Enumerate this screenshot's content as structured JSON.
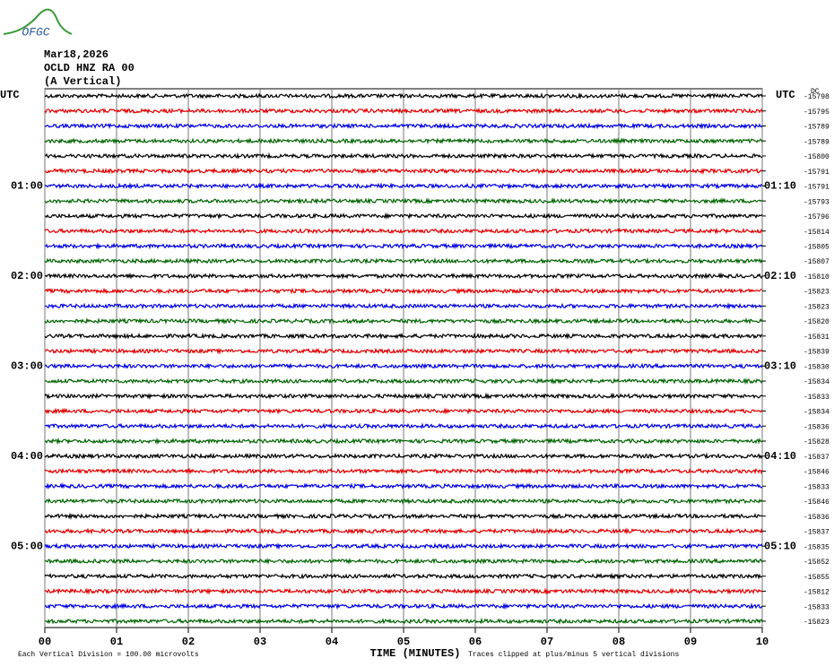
{
  "logo": "OFGC",
  "chart_data": {
    "type": "helicorder",
    "header": [
      "Mar18,2026",
      "OCLD HNZ RA 00",
      "(A Vertical)"
    ],
    "left_label": "UTC",
    "right_label": "UTC",
    "offset_label": "DC",
    "left_times": [
      {
        "row": 6,
        "label": "01:00"
      },
      {
        "row": 12,
        "label": "02:00"
      },
      {
        "row": 18,
        "label": "03:00"
      },
      {
        "row": 24,
        "label": "04:00"
      },
      {
        "row": 30,
        "label": "05:00"
      }
    ],
    "right_times": [
      {
        "row": 6,
        "label": "01:10"
      },
      {
        "row": 12,
        "label": "02:10"
      },
      {
        "row": 18,
        "label": "03:10"
      },
      {
        "row": 24,
        "label": "04:10"
      },
      {
        "row": 30,
        "label": "05:10"
      }
    ],
    "colors": [
      "#000000",
      "#e00000",
      "#0000e0",
      "#006400"
    ],
    "offsets": [
      -15798,
      -15795,
      -15789,
      -15789,
      -15800,
      -15791,
      -15791,
      -15793,
      -15796,
      -15814,
      -15805,
      -15807,
      -15810,
      -15823,
      -15823,
      -15820,
      -15831,
      -15839,
      -15830,
      -15834,
      -15833,
      -15834,
      -15836,
      -15828,
      -15837,
      -15846,
      -15833,
      -15846,
      -15836,
      -15837,
      -15835,
      -15852,
      -15855,
      -15812,
      -15833,
      -15823
    ],
    "x_label": "TIME (MINUTES)",
    "xlim": [
      0,
      10
    ],
    "xticks": [
      {
        "value": 0,
        "label": "00"
      },
      {
        "value": 1,
        "label": "01"
      },
      {
        "value": 2,
        "label": "02"
      },
      {
        "value": 3,
        "label": "03"
      },
      {
        "value": 4,
        "label": "04"
      },
      {
        "value": 5,
        "label": "05"
      },
      {
        "value": 6,
        "label": "06"
      },
      {
        "value": 7,
        "label": "07"
      },
      {
        "value": 8,
        "label": "08"
      },
      {
        "value": 9,
        "label": "09"
      },
      {
        "value": 10,
        "label": "10"
      }
    ],
    "footer_left": "Each Vertical Division =  100.00 microvolts",
    "footer_right": "Traces clipped at plus/minus 5 vertical divisions"
  }
}
